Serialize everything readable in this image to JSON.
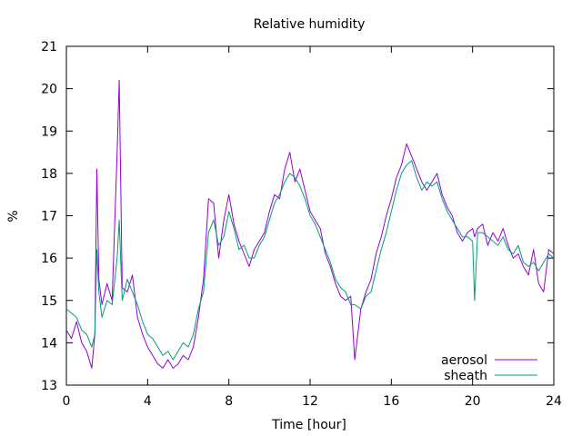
{
  "chart_data": {
    "type": "line",
    "title": "Relative humidity",
    "xlabel": "Time [hour]",
    "ylabel": "%",
    "xlim": [
      0,
      24
    ],
    "ylim": [
      13,
      21
    ],
    "x_ticks": [
      "0",
      "4",
      "8",
      "12",
      "16",
      "20",
      "24"
    ],
    "y_ticks": [
      "13",
      "14",
      "15",
      "16",
      "17",
      "18",
      "19",
      "20",
      "21"
    ],
    "grid": false,
    "legend_position": "bottom-right",
    "x": [
      0,
      0.25,
      0.5,
      0.75,
      1,
      1.25,
      1.4,
      1.5,
      1.6,
      1.75,
      2,
      2.25,
      2.5,
      2.6,
      2.75,
      3,
      3.25,
      3.5,
      3.75,
      4,
      4.25,
      4.5,
      4.75,
      5,
      5.25,
      5.5,
      5.75,
      6,
      6.25,
      6.5,
      6.75,
      7,
      7.25,
      7.5,
      7.75,
      8,
      8.25,
      8.5,
      8.75,
      9,
      9.25,
      9.5,
      9.75,
      10,
      10.25,
      10.5,
      10.75,
      11,
      11.25,
      11.5,
      11.75,
      12,
      12.25,
      12.5,
      12.75,
      13,
      13.25,
      13.5,
      13.75,
      14,
      14.2,
      14.5,
      14.75,
      15,
      15.25,
      15.5,
      15.75,
      16,
      16.25,
      16.5,
      16.75,
      17,
      17.25,
      17.5,
      17.75,
      18,
      18.25,
      18.5,
      18.75,
      19,
      19.25,
      19.5,
      19.75,
      20,
      20.1,
      20.25,
      20.5,
      20.75,
      21,
      21.25,
      21.5,
      21.75,
      22,
      22.25,
      22.5,
      22.75,
      23,
      23.25,
      23.5,
      23.75,
      24
    ],
    "series": [
      {
        "name": "aerosol",
        "color": "#9400d3",
        "values": [
          14.3,
          14.1,
          14.5,
          14.0,
          13.8,
          13.4,
          14.2,
          18.1,
          15.5,
          14.9,
          15.4,
          15.0,
          18.5,
          20.2,
          15.3,
          15.2,
          15.6,
          14.6,
          14.2,
          13.9,
          13.7,
          13.5,
          13.4,
          13.6,
          13.4,
          13.5,
          13.7,
          13.6,
          13.9,
          14.6,
          15.5,
          17.4,
          17.3,
          16.0,
          16.9,
          17.5,
          16.8,
          16.4,
          16.1,
          15.8,
          16.2,
          16.4,
          16.6,
          17.1,
          17.5,
          17.4,
          18.1,
          18.5,
          17.8,
          18.1,
          17.6,
          17.1,
          16.9,
          16.7,
          16.1,
          15.8,
          15.4,
          15.1,
          15.0,
          15.1,
          13.6,
          14.8,
          15.2,
          15.5,
          16.1,
          16.5,
          17.0,
          17.4,
          17.9,
          18.2,
          18.7,
          18.4,
          18.1,
          17.8,
          17.6,
          17.8,
          18.0,
          17.5,
          17.2,
          17.0,
          16.6,
          16.4,
          16.6,
          16.7,
          16.5,
          16.7,
          16.8,
          16.3,
          16.6,
          16.4,
          16.7,
          16.3,
          16.0,
          16.1,
          15.8,
          15.6,
          16.2,
          15.4,
          15.2,
          16.2,
          16.1
        ]
      },
      {
        "name": "sheath",
        "color": "#009e73",
        "values": [
          14.8,
          14.7,
          14.6,
          14.3,
          14.2,
          13.9,
          14.2,
          16.2,
          15.2,
          14.6,
          15.0,
          14.9,
          16.0,
          16.9,
          15.0,
          15.5,
          15.2,
          14.9,
          14.5,
          14.2,
          14.1,
          13.9,
          13.7,
          13.8,
          13.6,
          13.8,
          14.0,
          13.9,
          14.2,
          14.8,
          15.2,
          16.6,
          16.9,
          16.3,
          16.5,
          17.1,
          16.7,
          16.2,
          16.3,
          16.0,
          16.0,
          16.3,
          16.5,
          16.9,
          17.3,
          17.5,
          17.8,
          18.0,
          17.9,
          17.7,
          17.4,
          17.0,
          16.8,
          16.5,
          16.2,
          15.9,
          15.5,
          15.3,
          15.2,
          14.9,
          14.9,
          14.8,
          15.1,
          15.2,
          15.7,
          16.2,
          16.6,
          17.1,
          17.6,
          18.0,
          18.2,
          18.3,
          17.9,
          17.6,
          17.8,
          17.7,
          17.8,
          17.4,
          17.1,
          16.9,
          16.7,
          16.5,
          16.5,
          16.4,
          15.0,
          16.6,
          16.6,
          16.5,
          16.4,
          16.3,
          16.5,
          16.2,
          16.1,
          16.3,
          15.9,
          15.8,
          15.9,
          15.7,
          15.9,
          16.1,
          16.0
        ]
      }
    ]
  }
}
